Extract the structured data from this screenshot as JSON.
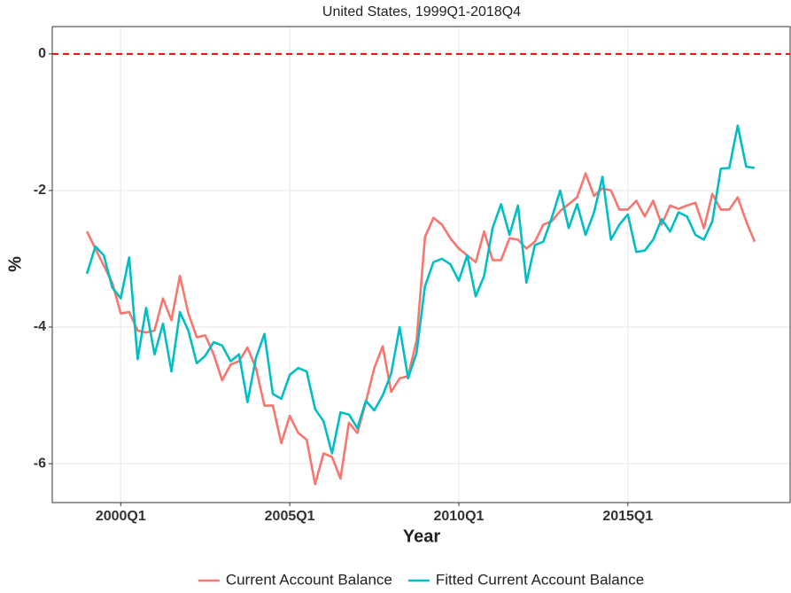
{
  "chart_data": {
    "type": "line",
    "title": "United States, 1999Q1-2018Q4",
    "x_label": "Year",
    "y_label": "%",
    "categories": [
      null,
      null,
      null,
      null,
      "2000Q1",
      null,
      null,
      null,
      null,
      null,
      null,
      null,
      null,
      null,
      null,
      null,
      null,
      null,
      null,
      null,
      null,
      null,
      null,
      null,
      "2005Q1",
      null,
      null,
      null,
      null,
      null,
      null,
      null,
      null,
      null,
      null,
      null,
      null,
      null,
      null,
      null,
      null,
      null,
      null,
      null,
      "2010Q1",
      null,
      null,
      null,
      null,
      null,
      null,
      null,
      null,
      null,
      null,
      null,
      null,
      null,
      null,
      null,
      null,
      null,
      null,
      null,
      "2015Q1",
      null,
      null,
      null,
      null,
      null,
      null,
      null,
      null,
      null,
      null,
      null,
      null,
      null,
      null,
      null
    ],
    "series": [
      {
        "name": "Current Account Balance",
        "color": "#F8766D",
        "values": [
          -2.6,
          -2.85,
          -3.1,
          -3.35,
          -3.8,
          -3.78,
          -4.05,
          -4.08,
          -4.05,
          -3.58,
          -3.9,
          -3.25,
          -3.8,
          -4.15,
          -4.12,
          -4.4,
          -4.78,
          -4.55,
          -4.5,
          -4.3,
          -4.6,
          -5.15,
          -5.15,
          -5.7,
          -5.3,
          -5.55,
          -5.65,
          -6.3,
          -5.85,
          -5.9,
          -6.22,
          -5.4,
          -5.55,
          -5.1,
          -4.6,
          -4.28,
          -4.95,
          -4.75,
          -4.72,
          -4.2,
          -2.68,
          -2.4,
          -2.5,
          -2.7,
          -2.85,
          -2.95,
          -3.05,
          -2.6,
          -3.02,
          -3.02,
          -2.7,
          -2.72,
          -2.85,
          -2.75,
          -2.5,
          -2.45,
          -2.3,
          -2.2,
          -2.1,
          -1.75,
          -2.08,
          -1.97,
          -2.0,
          -2.28,
          -2.28,
          -2.15,
          -2.38,
          -2.15,
          -2.5,
          -2.22,
          -2.27,
          -2.22,
          -2.18,
          -2.55,
          -2.05,
          -2.28,
          -2.28,
          -2.1,
          -2.45,
          -2.75
        ]
      },
      {
        "name": "Fitted Current Account Balance",
        "color": "#00BFC4",
        "values": [
          -3.22,
          -2.82,
          -2.95,
          -3.42,
          -3.58,
          -2.98,
          -4.47,
          -3.72,
          -4.4,
          -3.95,
          -4.65,
          -3.78,
          -4.05,
          -4.53,
          -4.42,
          -4.22,
          -4.27,
          -4.5,
          -4.4,
          -5.1,
          -4.45,
          -4.1,
          -4.98,
          -5.05,
          -4.7,
          -4.6,
          -4.65,
          -5.2,
          -5.38,
          -5.85,
          -5.25,
          -5.28,
          -5.48,
          -5.08,
          -5.22,
          -5.0,
          -4.68,
          -4.0,
          -4.75,
          -4.38,
          -3.4,
          -3.05,
          -3.0,
          -3.08,
          -3.32,
          -2.95,
          -3.55,
          -3.25,
          -2.55,
          -2.2,
          -2.65,
          -2.22,
          -3.35,
          -2.8,
          -2.75,
          -2.4,
          -2.0,
          -2.55,
          -2.2,
          -2.65,
          -2.32,
          -1.8,
          -2.72,
          -2.5,
          -2.35,
          -2.9,
          -2.88,
          -2.72,
          -2.42,
          -2.6,
          -2.32,
          -2.38,
          -2.65,
          -2.72,
          -2.45,
          -1.68,
          -1.67,
          -1.05,
          -1.65,
          -1.67
        ]
      }
    ],
    "ylim": [
      -6.57,
      0.4
    ],
    "yticks": [
      0,
      -2,
      -4,
      -6
    ],
    "reference_line": {
      "value": 0,
      "color": "#ff0000",
      "style": "dashed"
    },
    "grid": true,
    "legend": "bottom"
  }
}
